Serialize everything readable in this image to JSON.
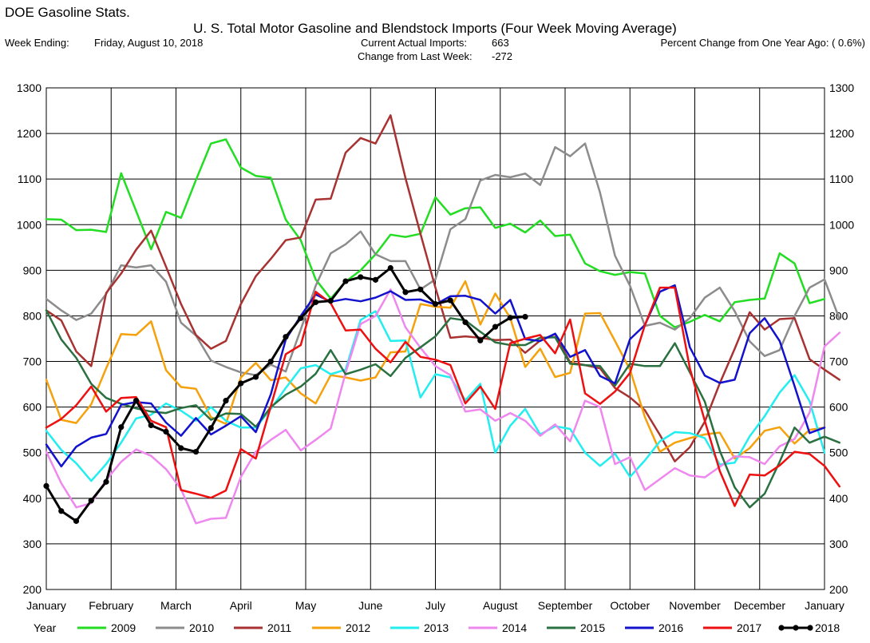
{
  "header": {
    "app_title": "DOE Gasoline Stats.",
    "chart_title": "U. S. Total Motor Gasoline and Blendstock Imports (Four Week Moving Average)",
    "week_ending_label": "Week Ending:",
    "week_ending_value": "Friday, August 10, 2018",
    "current_imports_label": "Current Actual Imports:",
    "current_imports_value": "663",
    "change_label": "Change from Last Week:",
    "change_value": "-272",
    "pct_change": "Percent Change from One Year Ago: ( 0.6%)"
  },
  "chart_data": {
    "type": "line",
    "title": "U. S. Total Motor Gasoline and Blendstock Imports (Four Week Moving Average)",
    "x_unit": "week of year",
    "x_range": [
      1,
      53
    ],
    "ylim": [
      200,
      1300
    ],
    "y_ticks": [
      200,
      300,
      400,
      500,
      600,
      700,
      800,
      900,
      1000,
      1100,
      1200,
      1300
    ],
    "y_tick_labels_right": true,
    "month_labels": [
      "January",
      "February",
      "March",
      "April",
      "May",
      "June",
      "July",
      "August",
      "September",
      "October",
      "November",
      "December",
      "January"
    ],
    "grid": true,
    "legend_title": "Year",
    "legend_position": "bottom",
    "series": [
      {
        "name": "2009",
        "color": "#22dd22",
        "width": 2.5,
        "markers": false,
        "values": [
          1012,
          1011,
          988,
          989,
          984,
          1113,
          1030,
          946,
          1028,
          1015,
          1098,
          1178,
          1187,
          1125,
          1107,
          1103,
          1011,
          966,
          880,
          838,
          875,
          900,
          935,
          978,
          973,
          980,
          1060,
          1022,
          1036,
          1038,
          993,
          1002,
          983,
          1009,
          975,
          978,
          915,
          898,
          890,
          896,
          893,
          800,
          775,
          787,
          802,
          788,
          830,
          835,
          838,
          937,
          915,
          828,
          837
        ]
      },
      {
        "name": "2010",
        "color": "#8c8c8c",
        "width": 2.5,
        "markers": false,
        "values": [
          837,
          812,
          791,
          805,
          848,
          911,
          906,
          911,
          875,
          785,
          757,
          702,
          688,
          676,
          670,
          693,
          678,
          770,
          866,
          937,
          957,
          985,
          935,
          920,
          920,
          858,
          880,
          990,
          1012,
          1097,
          1109,
          1104,
          1112,
          1087,
          1170,
          1150,
          1178,
          1070,
          932,
          866,
          778,
          785,
          770,
          795,
          840,
          862,
          810,
          744,
          712,
          725,
          800,
          862,
          880,
          793
        ]
      },
      {
        "name": "2011",
        "color": "#a83232",
        "width": 2.5,
        "markers": false,
        "values": [
          812,
          790,
          722,
          690,
          850,
          893,
          945,
          987,
          908,
          826,
          758,
          728,
          745,
          826,
          887,
          925,
          966,
          972,
          1055,
          1057,
          1158,
          1190,
          1178,
          1240,
          1102,
          980,
          862,
          752,
          755,
          752,
          747,
          748,
          719,
          746,
          760,
          698,
          692,
          685,
          642,
          621,
          593,
          539,
          481,
          512,
          568,
          652,
          728,
          808,
          770,
          793,
          795,
          705,
          682,
          660
        ]
      },
      {
        "name": "2012",
        "color": "#f5a10c",
        "width": 2.5,
        "markers": false,
        "values": [
          660,
          572,
          565,
          606,
          685,
          760,
          758,
          788,
          681,
          644,
          640,
          578,
          563,
          665,
          697,
          659,
          665,
          630,
          608,
          670,
          665,
          658,
          665,
          720,
          722,
          826,
          820,
          818,
          876,
          781,
          849,
          795,
          688,
          728,
          666,
          675,
          805,
          806,
          745,
          682,
          578,
          502,
          522,
          532,
          540,
          544,
          487,
          510,
          548,
          556,
          520,
          550,
          555
        ]
      },
      {
        "name": "2013",
        "color": "#22eef0",
        "width": 2.5,
        "markers": false,
        "values": [
          548,
          506,
          477,
          438,
          475,
          522,
          575,
          583,
          608,
          592,
          570,
          600,
          570,
          555,
          555,
          596,
          642,
          685,
          692,
          672,
          682,
          791,
          810,
          745,
          746,
          621,
          672,
          665,
          615,
          651,
          500,
          559,
          596,
          540,
          558,
          552,
          500,
          471,
          498,
          447,
          483,
          525,
          545,
          543,
          532,
          474,
          478,
          536,
          580,
          632,
          670,
          613,
          500
        ]
      },
      {
        "name": "2014",
        "color": "#ee88ee",
        "width": 2.5,
        "markers": false,
        "values": [
          502,
          433,
          380,
          389,
          440,
          480,
          507,
          493,
          464,
          420,
          345,
          355,
          357,
          447,
          502,
          528,
          550,
          505,
          528,
          553,
          675,
          782,
          800,
          858,
          775,
          730,
          690,
          670,
          590,
          595,
          570,
          587,
          570,
          537,
          562,
          525,
          614,
          600,
          475,
          490,
          418,
          442,
          466,
          450,
          446,
          469,
          492,
          490,
          475,
          514,
          530,
          588,
          733,
          763
        ]
      },
      {
        "name": "2015",
        "color": "#2a7040",
        "width": 2.5,
        "markers": false,
        "values": [
          812,
          748,
          708,
          651,
          620,
          607,
          597,
          590,
          587,
          598,
          604,
          572,
          586,
          585,
          557,
          600,
          627,
          645,
          673,
          725,
          672,
          682,
          694,
          668,
          708,
          731,
          755,
          795,
          790,
          765,
          742,
          736,
          736,
          752,
          753,
          695,
          692,
          690,
          647,
          695,
          690,
          690,
          740,
          676,
          612,
          504,
          424,
          380,
          410,
          480,
          555,
          522,
          535,
          522
        ]
      },
      {
        "name": "2016",
        "color": "#1212cc",
        "width": 2.5,
        "markers": false,
        "values": [
          518,
          470,
          513,
          533,
          541,
          605,
          611,
          608,
          566,
          537,
          576,
          540,
          559,
          580,
          545,
          628,
          748,
          800,
          847,
          831,
          837,
          832,
          840,
          854,
          835,
          836,
          825,
          843,
          844,
          835,
          805,
          835,
          749,
          745,
          761,
          710,
          725,
          668,
          652,
          749,
          780,
          853,
          867,
          731,
          669,
          653,
          660,
          762,
          795,
          745,
          646,
          543,
          555
        ]
      },
      {
        "name": "2017",
        "color": "#ee1010",
        "width": 2.5,
        "markers": false,
        "values": [
          555,
          574,
          604,
          645,
          590,
          620,
          622,
          570,
          556,
          418,
          410,
          401,
          417,
          508,
          487,
          602,
          716,
          736,
          853,
          828,
          768,
          770,
          728,
          698,
          743,
          710,
          704,
          692,
          608,
          645,
          596,
          740,
          750,
          758,
          718,
          792,
          630,
          607,
          634,
          675,
          780,
          862,
          862,
          685,
          570,
          460,
          383,
          452,
          450,
          472,
          502,
          497,
          471,
          426
        ]
      },
      {
        "name": "2018",
        "color": "#000000",
        "width": 3,
        "markers": true,
        "values": [
          427,
          372,
          350,
          395,
          436,
          556,
          614,
          560,
          546,
          510,
          502,
          554,
          614,
          652,
          666,
          700,
          754,
          795,
          830,
          833,
          876,
          885,
          879,
          905,
          852,
          858,
          826,
          834,
          786,
          746,
          776,
          796,
          798
        ]
      }
    ]
  },
  "legend": {
    "title": "Year"
  }
}
